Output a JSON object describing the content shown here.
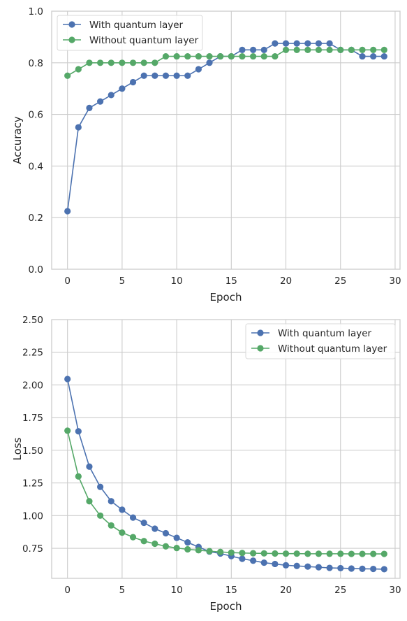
{
  "colors": {
    "series_1": "#4c72b0",
    "series_2": "#55a868",
    "grid": "#cccccc",
    "axes_edge": "#cccccc",
    "background": "#ffffff",
    "text": "#262626"
  },
  "chart_data": [
    {
      "type": "line",
      "marker": "circle",
      "title": "",
      "xlabel": "Epoch",
      "ylabel": "Accuracy",
      "xlim": [
        -1.45,
        30.45
      ],
      "ylim": [
        0.0,
        1.0
      ],
      "xticks": [
        0,
        5,
        10,
        15,
        20,
        25,
        30
      ],
      "xtick_labels": [
        "0",
        "5",
        "10",
        "15",
        "20",
        "25",
        "30"
      ],
      "yticks": [
        0.0,
        0.2,
        0.4,
        0.6,
        0.8,
        1.0
      ],
      "ytick_labels": [
        "0.0",
        "0.2",
        "0.4",
        "0.6",
        "0.8",
        "1.0"
      ],
      "grid": true,
      "legend_position": "top-left",
      "x": [
        0,
        1,
        2,
        3,
        4,
        5,
        6,
        7,
        8,
        9,
        10,
        11,
        12,
        13,
        14,
        15,
        16,
        17,
        18,
        19,
        20,
        21,
        22,
        23,
        24,
        25,
        26,
        27,
        28,
        29
      ],
      "series": [
        {
          "name": "With quantum layer",
          "color_key": "series_1",
          "values": [
            0.225,
            0.55,
            0.625,
            0.65,
            0.675,
            0.7,
            0.725,
            0.75,
            0.75,
            0.75,
            0.75,
            0.75,
            0.775,
            0.8,
            0.825,
            0.825,
            0.85,
            0.85,
            0.85,
            0.875,
            0.875,
            0.875,
            0.875,
            0.875,
            0.875,
            0.85,
            0.85,
            0.825,
            0.825,
            0.825
          ]
        },
        {
          "name": "Without quantum layer",
          "color_key": "series_2",
          "values": [
            0.75,
            0.775,
            0.8,
            0.8,
            0.8,
            0.8,
            0.8,
            0.8,
            0.8,
            0.825,
            0.825,
            0.825,
            0.825,
            0.825,
            0.825,
            0.825,
            0.825,
            0.825,
            0.825,
            0.825,
            0.85,
            0.85,
            0.85,
            0.85,
            0.85,
            0.85,
            0.85,
            0.85,
            0.85,
            0.85
          ]
        }
      ]
    },
    {
      "type": "line",
      "marker": "circle",
      "title": "",
      "xlabel": "Epoch",
      "ylabel": "Loss",
      "xlim": [
        -1.45,
        30.45
      ],
      "ylim": [
        0.52,
        2.5
      ],
      "xticks": [
        0,
        5,
        10,
        15,
        20,
        25,
        30
      ],
      "xtick_labels": [
        "0",
        "5",
        "10",
        "15",
        "20",
        "25",
        "30"
      ],
      "yticks": [
        0.75,
        1.0,
        1.25,
        1.5,
        1.75,
        2.0,
        2.25,
        2.5
      ],
      "ytick_labels": [
        "0.75",
        "1.00",
        "1.25",
        "1.50",
        "1.75",
        "2.00",
        "2.25",
        "2.50"
      ],
      "grid": true,
      "legend_position": "top-right",
      "x": [
        0,
        1,
        2,
        3,
        4,
        5,
        6,
        7,
        8,
        9,
        10,
        11,
        12,
        13,
        14,
        15,
        16,
        17,
        18,
        19,
        20,
        21,
        22,
        23,
        24,
        25,
        26,
        27,
        28,
        29
      ],
      "series": [
        {
          "name": "With quantum layer",
          "color_key": "series_1",
          "values": [
            2.045,
            1.645,
            1.375,
            1.22,
            1.11,
            1.045,
            0.985,
            0.945,
            0.9,
            0.865,
            0.83,
            0.795,
            0.76,
            0.725,
            0.71,
            0.69,
            0.67,
            0.655,
            0.64,
            0.63,
            0.62,
            0.615,
            0.61,
            0.605,
            0.6,
            0.598,
            0.595,
            0.593,
            0.592,
            0.59
          ]
        },
        {
          "name": "Without quantum layer",
          "color_key": "series_2",
          "values": [
            1.65,
            1.3,
            1.11,
            1.0,
            0.925,
            0.87,
            0.835,
            0.805,
            0.785,
            0.765,
            0.752,
            0.742,
            0.735,
            0.728,
            0.722,
            0.717,
            0.714,
            0.712,
            0.711,
            0.71,
            0.709,
            0.709,
            0.708,
            0.708,
            0.708,
            0.708,
            0.707,
            0.707,
            0.707,
            0.707
          ]
        }
      ]
    }
  ]
}
